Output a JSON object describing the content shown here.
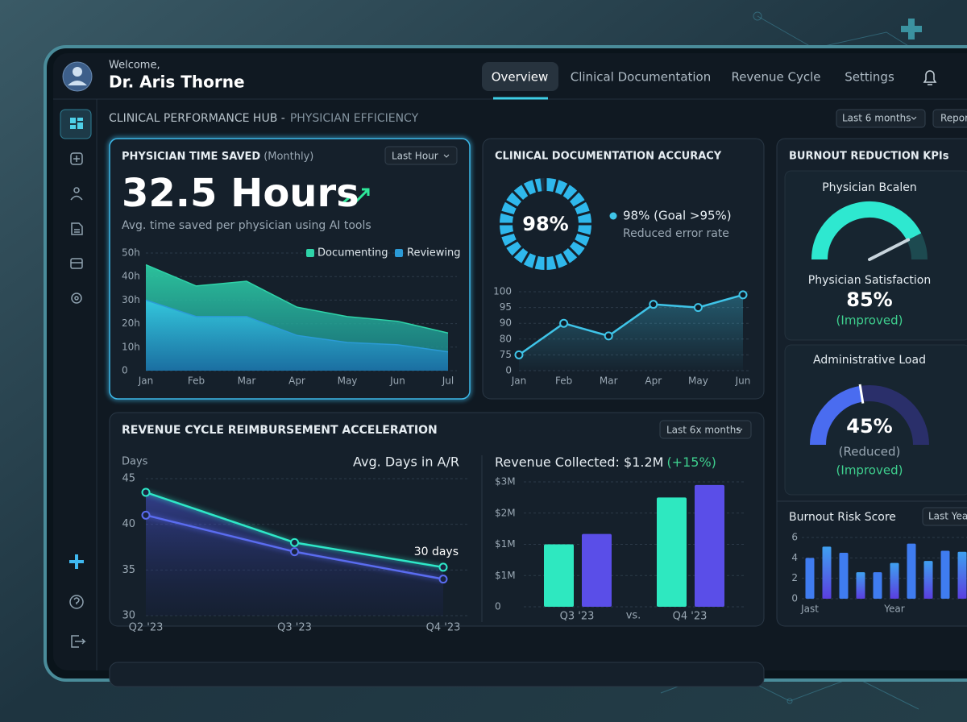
{
  "header": {
    "welcome": "Welcome,",
    "name": "Dr. Aris Thorne",
    "nav": [
      "Overview",
      "Clinical Documentation",
      "Revenue Cycle",
      "Settings"
    ]
  },
  "hub": {
    "title": "CLINICAL PERFORMANCE HUB -",
    "subtitle": "PHYSICIAN EFFICIENCY",
    "filters": [
      "Last 6 months",
      "Repor"
    ]
  },
  "chart_data": [
    {
      "type": "area",
      "title": "PHYSICIAN TIME SAVED",
      "subtitle": "(Monthly)",
      "filter": "Last Hour",
      "headline": "32.5 Hours",
      "caption": "Avg. time saved per physician using AI tools",
      "categories": [
        "Jan",
        "Feb",
        "Mar",
        "Apr",
        "May",
        "Jun",
        "Jul"
      ],
      "series": [
        {
          "name": "Documenting",
          "color": "#2ed3a8",
          "values": [
            45,
            36,
            38,
            27,
            23,
            21,
            16
          ]
        },
        {
          "name": "Reviewing",
          "color": "#2b9ad6",
          "values": [
            30,
            23,
            23,
            15,
            12,
            11,
            8
          ]
        }
      ],
      "ylim": [
        0,
        50
      ],
      "yticks": [
        0,
        {
          "value": 10,
          "label": "10h"
        },
        {
          "value": 20,
          "label": "20h"
        },
        {
          "value": 30,
          "label": "30h"
        },
        {
          "value": 40,
          "label": "40h"
        },
        {
          "value": 50,
          "label": "50h"
        }
      ],
      "grid": true
    },
    {
      "type": "line",
      "title": "CLINICAL DOCUMENTATION ACCURACY",
      "donut": {
        "value": 98,
        "value_label": "98%"
      },
      "legend": "98% (Goal >95%)",
      "caption": "Reduced error rate",
      "categories": [
        "Jan",
        "Feb",
        "Mar",
        "Apr",
        "May",
        "Jun"
      ],
      "values": [
        75,
        90,
        82,
        96,
        95,
        99
      ],
      "color": "#3fc4e8",
      "ylim": [
        0,
        100
      ],
      "yticks": [
        0,
        75,
        80,
        90,
        95,
        100
      ],
      "grid": true
    },
    {
      "type": "gauge",
      "title": "BURNOUT REDUCTION KPIs",
      "gauges": [
        {
          "title": "Physician Bcalen",
          "label": "Physician Satisfaction",
          "value": 85,
          "value_label": "85%",
          "notes": [
            "(Improved)"
          ],
          "color": "#2ee8d0"
        },
        {
          "title": "Administrative Load",
          "value": 45,
          "value_label": "45%",
          "notes": [
            "(Reduced)",
            "(Improved)"
          ],
          "color": "#4a6cf0"
        }
      ]
    },
    {
      "type": "bar",
      "title": "Burnout Risk Score",
      "filter": "Last Year",
      "categories": [
        "Jast",
        null,
        null,
        null,
        null,
        "Year",
        null,
        null,
        null,
        null
      ],
      "values": [
        4,
        5.1,
        4.5,
        2.6,
        2.6,
        3.5,
        5.4,
        3.7,
        4.7,
        4.6
      ],
      "color": "#3f7cf0",
      "ylim": [
        0,
        6
      ],
      "yticks": [
        0,
        2,
        4,
        6
      ],
      "grid": true
    },
    {
      "type": "line",
      "title": "REVENUE CYCLE REIMBURSEMENT ACCELERATION",
      "filter": "Last 6x months",
      "y_label": "Days",
      "subtitle": "Avg. Days in A/R",
      "annotation": "30 days",
      "categories": [
        "Q2 '23",
        "Q3 '23",
        "Q4 '23"
      ],
      "series": [
        {
          "color": "#2ee8c8",
          "values": [
            43.5,
            38,
            35.3
          ]
        },
        {
          "color": "#5a6cf0",
          "values": [
            41,
            37,
            34
          ]
        }
      ],
      "ylim": [
        30,
        45
      ],
      "yticks": [
        30,
        35,
        40,
        45
      ],
      "grid": true
    },
    {
      "type": "bar",
      "title": "Revenue Collected: $1.2M",
      "title_note": "(+15%)",
      "categories": [
        "Q3 '23",
        "Q4 '23"
      ],
      "separator": "vs.",
      "series": [
        {
          "color": "#2ee8c0",
          "values": [
            1400000,
            2500000
          ]
        },
        {
          "color": "#5a4ee8",
          "values": [
            1600000,
            2900000
          ]
        }
      ],
      "ylim": [
        0,
        3000000
      ],
      "yticks": [
        0,
        {
          "value": 1000000,
          "label": "$1M"
        },
        {
          "value": 1400000,
          "label": "$1M"
        },
        {
          "value": 2000000,
          "label": "$2M"
        },
        {
          "value": 3000000,
          "label": "$3M"
        }
      ],
      "grid": true
    }
  ]
}
